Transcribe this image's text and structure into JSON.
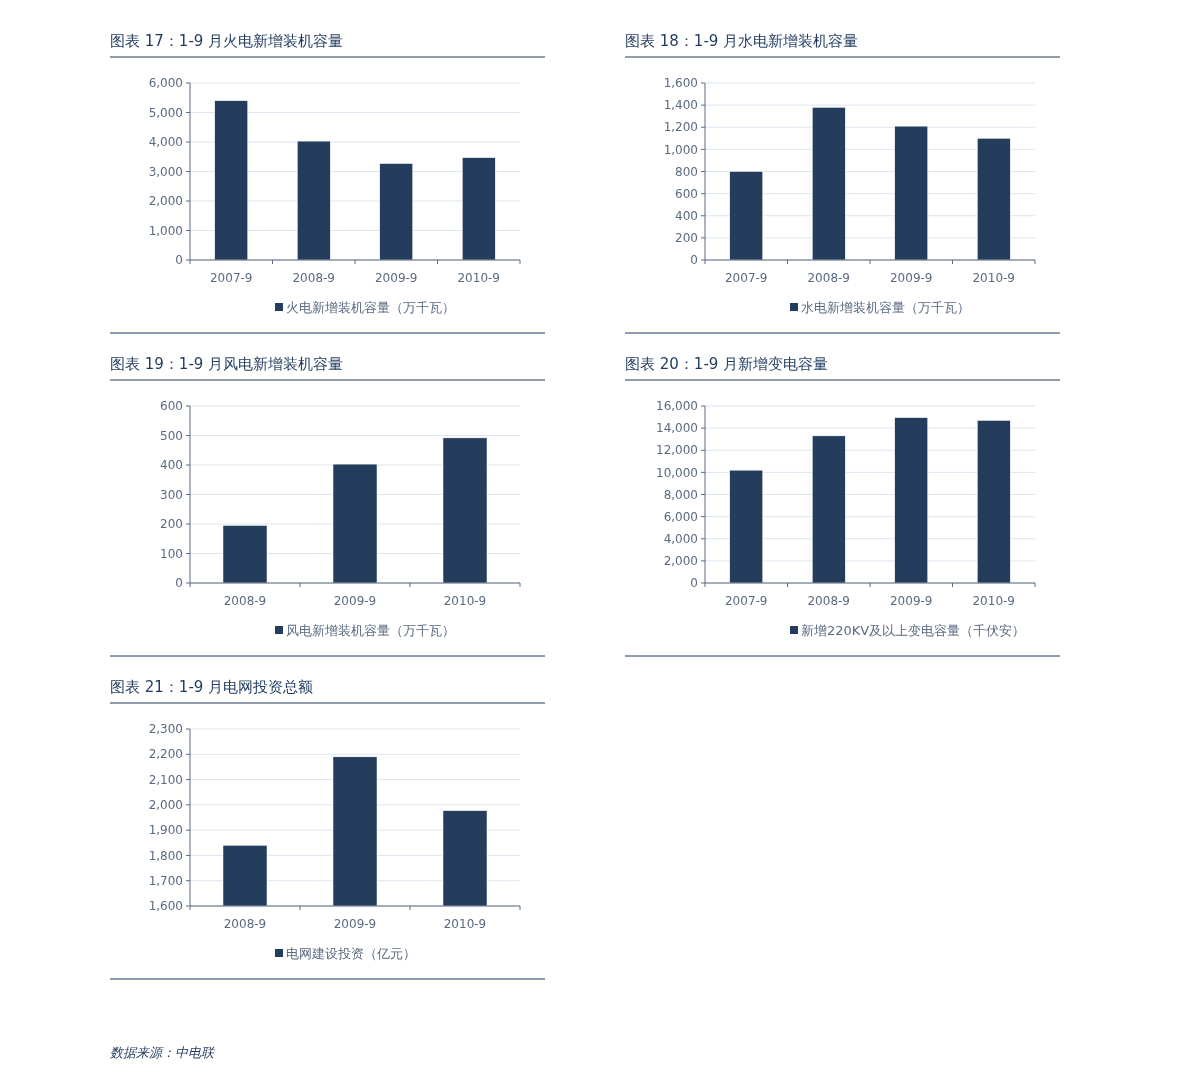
{
  "chart_data": [
    {
      "type": "bar",
      "title": "图表 17：1-9 月火电新增装机容量",
      "categories": [
        "2007-9",
        "2008-9",
        "2009-9",
        "2010-9"
      ],
      "series": [
        {
          "name": "火电新增装机容量（万千瓦）",
          "color": "#243d5c",
          "values": [
            5400,
            4030,
            3270,
            3470
          ]
        }
      ],
      "ylim": [
        0,
        6000
      ],
      "yticks": [
        0,
        {
          "value": 1000,
          "label": "1,000"
        },
        {
          "value": 2000,
          "label": "2,000"
        },
        {
          "value": 3000,
          "label": "3,000"
        },
        {
          "value": 4000,
          "label": "4,000"
        },
        {
          "value": 5000,
          "label": "5,000"
        },
        {
          "value": 6000,
          "label": "6,000"
        }
      ],
      "grid": "y",
      "legend": "bottom"
    },
    {
      "type": "bar",
      "title": "图表 18：1-9 月水电新增装机容量",
      "categories": [
        "2007-9",
        "2008-9",
        "2009-9",
        "2010-9"
      ],
      "series": [
        {
          "name": "水电新增装机容量（万千瓦）",
          "color": "#243d5c",
          "values": [
            800,
            1380,
            1210,
            1100
          ]
        }
      ],
      "ylim": [
        0,
        1600
      ],
      "yticks": [
        0,
        200,
        400,
        600,
        800,
        {
          "value": 1000,
          "label": "1,000"
        },
        {
          "value": 1200,
          "label": "1,200"
        },
        {
          "value": 1400,
          "label": "1,400"
        },
        {
          "value": 1600,
          "label": "1,600"
        }
      ],
      "grid": "y",
      "legend": "bottom"
    },
    {
      "type": "bar",
      "title": "图表 19：1-9 月风电新增装机容量",
      "categories": [
        "2008-9",
        "2009-9",
        "2010-9"
      ],
      "series": [
        {
          "name": "风电新增装机容量（万千瓦）",
          "color": "#243d5c",
          "values": [
            195,
            403,
            492
          ]
        }
      ],
      "ylim": [
        0,
        600
      ],
      "yticks": [
        0,
        100,
        200,
        300,
        400,
        500,
        600
      ],
      "grid": "y",
      "legend": "bottom"
    },
    {
      "type": "bar",
      "title": "图表 20：1-9 月新增变电容量",
      "categories": [
        "2007-9",
        "2008-9",
        "2009-9",
        "2010-9"
      ],
      "series": [
        {
          "name": "新增220KV及以上变电容量（千伏安）",
          "color": "#243d5c",
          "values": [
            10200,
            13300,
            14950,
            14700
          ]
        }
      ],
      "ylim": [
        0,
        16000
      ],
      "yticks": [
        0,
        {
          "value": 2000,
          "label": "2,000"
        },
        {
          "value": 4000,
          "label": "4,000"
        },
        {
          "value": 6000,
          "label": "6,000"
        },
        {
          "value": 8000,
          "label": "8,000"
        },
        {
          "value": 10000,
          "label": "10,000"
        },
        {
          "value": 12000,
          "label": "12,000"
        },
        {
          "value": 14000,
          "label": "14,000"
        },
        {
          "value": 16000,
          "label": "16,000"
        }
      ],
      "grid": "y",
      "legend": "bottom"
    },
    {
      "type": "bar",
      "title": "图表 21：1-9 月电网投资总额",
      "categories": [
        "2008-9",
        "2009-9",
        "2010-9"
      ],
      "series": [
        {
          "name": "电网建设投资（亿元）",
          "color": "#243d5c",
          "values": [
            1840,
            2190,
            1977
          ]
        }
      ],
      "ylim": [
        1600,
        2300
      ],
      "yticks": [
        {
          "value": 1600,
          "label": "1,600"
        },
        {
          "value": 1700,
          "label": "1,700"
        },
        {
          "value": 1800,
          "label": "1,800"
        },
        {
          "value": 1900,
          "label": "1,900"
        },
        {
          "value": 2000,
          "label": "2,000"
        },
        {
          "value": 2100,
          "label": "2,100"
        },
        {
          "value": 2200,
          "label": "2,200"
        },
        {
          "value": 2300,
          "label": "2,300"
        }
      ],
      "grid": "y",
      "legend": "bottom",
      "annotations": [
        "数据来源：中电联"
      ]
    }
  ]
}
